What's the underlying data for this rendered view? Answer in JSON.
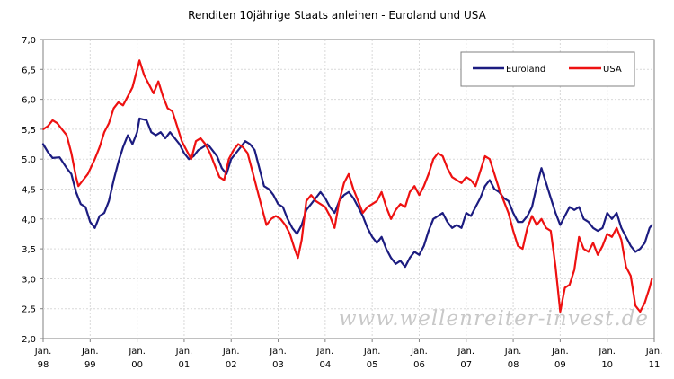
{
  "chart_data": {
    "type": "line",
    "title": "Renditen 10jährige Staats anleihen - Euroland und USA",
    "xlabel": "",
    "ylabel": "",
    "ylim": [
      2.0,
      7.0
    ],
    "yticks": [
      "7,0",
      "6,5",
      "6,0",
      "5,5",
      "5,0",
      "4,5",
      "4,0",
      "3,5",
      "3,0",
      "2,5",
      "2,0"
    ],
    "xlim": [
      1998.0,
      2011.0
    ],
    "xticks": [
      {
        "l1": "Jan.",
        "l2": "98"
      },
      {
        "l1": "Jan.",
        "l2": "99"
      },
      {
        "l1": "Jan.",
        "l2": "00"
      },
      {
        "l1": "Jan.",
        "l2": "01"
      },
      {
        "l1": "Jan.",
        "l2": "02"
      },
      {
        "l1": "Jan.",
        "l2": "03"
      },
      {
        "l1": "Jan.",
        "l2": "04"
      },
      {
        "l1": "Jan.",
        "l2": "05"
      },
      {
        "l1": "Jan.",
        "l2": "06"
      },
      {
        "l1": "Jan.",
        "l2": "07"
      },
      {
        "l1": "Jan.",
        "l2": "08"
      },
      {
        "l1": "Jan.",
        "l2": "09"
      },
      {
        "l1": "Jan.",
        "l2": "10"
      },
      {
        "l1": "Jan.",
        "l2": "11"
      }
    ],
    "grid": true,
    "legend_position": "top-right",
    "watermark": "www.wellenreiter-invest.de",
    "series": [
      {
        "name": "Euroland",
        "color": "#1c1c80",
        "points": [
          [
            1998.0,
            5.25
          ],
          [
            1998.1,
            5.12
          ],
          [
            1998.2,
            5.02
          ],
          [
            1998.35,
            5.03
          ],
          [
            1998.5,
            4.85
          ],
          [
            1998.6,
            4.75
          ],
          [
            1998.7,
            4.45
          ],
          [
            1998.8,
            4.25
          ],
          [
            1998.9,
            4.2
          ],
          [
            1999.0,
            3.95
          ],
          [
            1999.1,
            3.85
          ],
          [
            1999.2,
            4.05
          ],
          [
            1999.3,
            4.1
          ],
          [
            1999.4,
            4.3
          ],
          [
            1999.5,
            4.65
          ],
          [
            1999.6,
            4.95
          ],
          [
            1999.7,
            5.2
          ],
          [
            1999.8,
            5.4
          ],
          [
            1999.9,
            5.25
          ],
          [
            2000.0,
            5.45
          ],
          [
            2000.05,
            5.68
          ],
          [
            2000.2,
            5.65
          ],
          [
            2000.3,
            5.45
          ],
          [
            2000.4,
            5.4
          ],
          [
            2000.5,
            5.45
          ],
          [
            2000.6,
            5.35
          ],
          [
            2000.7,
            5.45
          ],
          [
            2000.8,
            5.35
          ],
          [
            2000.9,
            5.25
          ],
          [
            2001.0,
            5.1
          ],
          [
            2001.1,
            5.0
          ],
          [
            2001.2,
            5.05
          ],
          [
            2001.3,
            5.15
          ],
          [
            2001.4,
            5.2
          ],
          [
            2001.5,
            5.25
          ],
          [
            2001.6,
            5.15
          ],
          [
            2001.7,
            5.05
          ],
          [
            2001.8,
            4.85
          ],
          [
            2001.9,
            4.75
          ],
          [
            2002.0,
            5.0
          ],
          [
            2002.1,
            5.1
          ],
          [
            2002.2,
            5.2
          ],
          [
            2002.3,
            5.3
          ],
          [
            2002.4,
            5.25
          ],
          [
            2002.5,
            5.15
          ],
          [
            2002.6,
            4.85
          ],
          [
            2002.7,
            4.55
          ],
          [
            2002.8,
            4.5
          ],
          [
            2002.9,
            4.4
          ],
          [
            2003.0,
            4.25
          ],
          [
            2003.1,
            4.2
          ],
          [
            2003.2,
            4.0
          ],
          [
            2003.3,
            3.85
          ],
          [
            2003.4,
            3.75
          ],
          [
            2003.5,
            3.9
          ],
          [
            2003.6,
            4.15
          ],
          [
            2003.7,
            4.25
          ],
          [
            2003.8,
            4.35
          ],
          [
            2003.9,
            4.45
          ],
          [
            2004.0,
            4.35
          ],
          [
            2004.1,
            4.2
          ],
          [
            2004.2,
            4.1
          ],
          [
            2004.3,
            4.3
          ],
          [
            2004.4,
            4.4
          ],
          [
            2004.5,
            4.45
          ],
          [
            2004.6,
            4.35
          ],
          [
            2004.7,
            4.2
          ],
          [
            2004.8,
            4.05
          ],
          [
            2004.9,
            3.85
          ],
          [
            2005.0,
            3.7
          ],
          [
            2005.1,
            3.6
          ],
          [
            2005.2,
            3.7
          ],
          [
            2005.3,
            3.5
          ],
          [
            2005.4,
            3.35
          ],
          [
            2005.5,
            3.25
          ],
          [
            2005.6,
            3.3
          ],
          [
            2005.7,
            3.2
          ],
          [
            2005.8,
            3.35
          ],
          [
            2005.9,
            3.45
          ],
          [
            2006.0,
            3.4
          ],
          [
            2006.1,
            3.55
          ],
          [
            2006.2,
            3.8
          ],
          [
            2006.3,
            4.0
          ],
          [
            2006.4,
            4.05
          ],
          [
            2006.5,
            4.1
          ],
          [
            2006.6,
            3.95
          ],
          [
            2006.7,
            3.85
          ],
          [
            2006.8,
            3.9
          ],
          [
            2006.9,
            3.85
          ],
          [
            2007.0,
            4.1
          ],
          [
            2007.1,
            4.05
          ],
          [
            2007.2,
            4.2
          ],
          [
            2007.3,
            4.35
          ],
          [
            2007.4,
            4.55
          ],
          [
            2007.5,
            4.65
          ],
          [
            2007.6,
            4.5
          ],
          [
            2007.7,
            4.45
          ],
          [
            2007.8,
            4.35
          ],
          [
            2007.9,
            4.3
          ],
          [
            2008.0,
            4.1
          ],
          [
            2008.1,
            3.95
          ],
          [
            2008.2,
            3.95
          ],
          [
            2008.3,
            4.05
          ],
          [
            2008.4,
            4.2
          ],
          [
            2008.5,
            4.55
          ],
          [
            2008.6,
            4.85
          ],
          [
            2008.7,
            4.6
          ],
          [
            2008.8,
            4.35
          ],
          [
            2008.9,
            4.1
          ],
          [
            2009.0,
            3.9
          ],
          [
            2009.1,
            4.05
          ],
          [
            2009.2,
            4.2
          ],
          [
            2009.3,
            4.15
          ],
          [
            2009.4,
            4.2
          ],
          [
            2009.5,
            4.0
          ],
          [
            2009.6,
            3.95
          ],
          [
            2009.7,
            3.85
          ],
          [
            2009.8,
            3.8
          ],
          [
            2009.9,
            3.85
          ],
          [
            2010.0,
            4.1
          ],
          [
            2010.1,
            4.0
          ],
          [
            2010.2,
            4.1
          ],
          [
            2010.3,
            3.85
          ],
          [
            2010.4,
            3.7
          ],
          [
            2010.5,
            3.55
          ],
          [
            2010.6,
            3.45
          ],
          [
            2010.7,
            3.5
          ],
          [
            2010.8,
            3.6
          ],
          [
            2010.9,
            3.85
          ],
          [
            2010.95,
            3.9
          ]
        ]
      },
      {
        "name": "USA",
        "color": "#ee1111",
        "points": [
          [
            1998.0,
            5.5
          ],
          [
            1998.1,
            5.55
          ],
          [
            1998.2,
            5.65
          ],
          [
            1998.3,
            5.6
          ],
          [
            1998.4,
            5.5
          ],
          [
            1998.5,
            5.4
          ],
          [
            1998.6,
            5.1
          ],
          [
            1998.7,
            4.7
          ],
          [
            1998.75,
            4.55
          ],
          [
            1998.85,
            4.65
          ],
          [
            1998.95,
            4.75
          ],
          [
            1999.1,
            5.0
          ],
          [
            1999.2,
            5.2
          ],
          [
            1999.3,
            5.45
          ],
          [
            1999.4,
            5.6
          ],
          [
            1999.5,
            5.85
          ],
          [
            1999.6,
            5.95
          ],
          [
            1999.7,
            5.9
          ],
          [
            1999.8,
            6.05
          ],
          [
            1999.9,
            6.2
          ],
          [
            2000.0,
            6.5
          ],
          [
            2000.05,
            6.65
          ],
          [
            2000.15,
            6.4
          ],
          [
            2000.25,
            6.25
          ],
          [
            2000.35,
            6.1
          ],
          [
            2000.45,
            6.3
          ],
          [
            2000.55,
            6.05
          ],
          [
            2000.65,
            5.85
          ],
          [
            2000.75,
            5.8
          ],
          [
            2000.85,
            5.55
          ],
          [
            2000.95,
            5.3
          ],
          [
            2001.05,
            5.15
          ],
          [
            2001.15,
            5.0
          ],
          [
            2001.25,
            5.3
          ],
          [
            2001.35,
            5.35
          ],
          [
            2001.45,
            5.25
          ],
          [
            2001.55,
            5.1
          ],
          [
            2001.65,
            4.9
          ],
          [
            2001.75,
            4.7
          ],
          [
            2001.85,
            4.65
          ],
          [
            2001.95,
            5.0
          ],
          [
            2002.05,
            5.15
          ],
          [
            2002.15,
            5.25
          ],
          [
            2002.25,
            5.2
          ],
          [
            2002.35,
            5.1
          ],
          [
            2002.45,
            4.8
          ],
          [
            2002.55,
            4.5
          ],
          [
            2002.65,
            4.2
          ],
          [
            2002.75,
            3.9
          ],
          [
            2002.85,
            4.0
          ],
          [
            2002.95,
            4.05
          ],
          [
            2003.05,
            4.0
          ],
          [
            2003.15,
            3.9
          ],
          [
            2003.25,
            3.75
          ],
          [
            2003.35,
            3.5
          ],
          [
            2003.42,
            3.35
          ],
          [
            2003.5,
            3.65
          ],
          [
            2003.6,
            4.3
          ],
          [
            2003.7,
            4.4
          ],
          [
            2003.8,
            4.3
          ],
          [
            2003.9,
            4.25
          ],
          [
            2004.0,
            4.2
          ],
          [
            2004.1,
            4.05
          ],
          [
            2004.2,
            3.85
          ],
          [
            2004.3,
            4.3
          ],
          [
            2004.4,
            4.6
          ],
          [
            2004.5,
            4.75
          ],
          [
            2004.6,
            4.5
          ],
          [
            2004.7,
            4.3
          ],
          [
            2004.8,
            4.1
          ],
          [
            2004.9,
            4.2
          ],
          [
            2005.0,
            4.25
          ],
          [
            2005.1,
            4.3
          ],
          [
            2005.2,
            4.45
          ],
          [
            2005.3,
            4.2
          ],
          [
            2005.4,
            4.0
          ],
          [
            2005.5,
            4.15
          ],
          [
            2005.6,
            4.25
          ],
          [
            2005.7,
            4.2
          ],
          [
            2005.8,
            4.45
          ],
          [
            2005.9,
            4.55
          ],
          [
            2006.0,
            4.4
          ],
          [
            2006.1,
            4.55
          ],
          [
            2006.2,
            4.75
          ],
          [
            2006.3,
            5.0
          ],
          [
            2006.4,
            5.1
          ],
          [
            2006.5,
            5.05
          ],
          [
            2006.6,
            4.85
          ],
          [
            2006.7,
            4.7
          ],
          [
            2006.8,
            4.65
          ],
          [
            2006.9,
            4.6
          ],
          [
            2007.0,
            4.7
          ],
          [
            2007.1,
            4.65
          ],
          [
            2007.2,
            4.55
          ],
          [
            2007.3,
            4.8
          ],
          [
            2007.4,
            5.05
          ],
          [
            2007.5,
            5.0
          ],
          [
            2007.6,
            4.75
          ],
          [
            2007.7,
            4.5
          ],
          [
            2007.8,
            4.3
          ],
          [
            2007.9,
            4.1
          ],
          [
            2008.0,
            3.8
          ],
          [
            2008.1,
            3.55
          ],
          [
            2008.2,
            3.5
          ],
          [
            2008.3,
            3.85
          ],
          [
            2008.4,
            4.05
          ],
          [
            2008.5,
            3.9
          ],
          [
            2008.6,
            4.0
          ],
          [
            2008.7,
            3.85
          ],
          [
            2008.8,
            3.8
          ],
          [
            2008.9,
            3.2
          ],
          [
            2009.0,
            2.45
          ],
          [
            2009.1,
            2.85
          ],
          [
            2009.2,
            2.9
          ],
          [
            2009.3,
            3.15
          ],
          [
            2009.4,
            3.7
          ],
          [
            2009.5,
            3.5
          ],
          [
            2009.6,
            3.45
          ],
          [
            2009.7,
            3.6
          ],
          [
            2009.8,
            3.4
          ],
          [
            2009.9,
            3.55
          ],
          [
            2010.0,
            3.75
          ],
          [
            2010.1,
            3.7
          ],
          [
            2010.2,
            3.85
          ],
          [
            2010.3,
            3.65
          ],
          [
            2010.4,
            3.2
          ],
          [
            2010.5,
            3.05
          ],
          [
            2010.6,
            2.55
          ],
          [
            2010.7,
            2.45
          ],
          [
            2010.8,
            2.6
          ],
          [
            2010.9,
            2.85
          ],
          [
            2010.95,
            3.0
          ]
        ]
      }
    ]
  }
}
